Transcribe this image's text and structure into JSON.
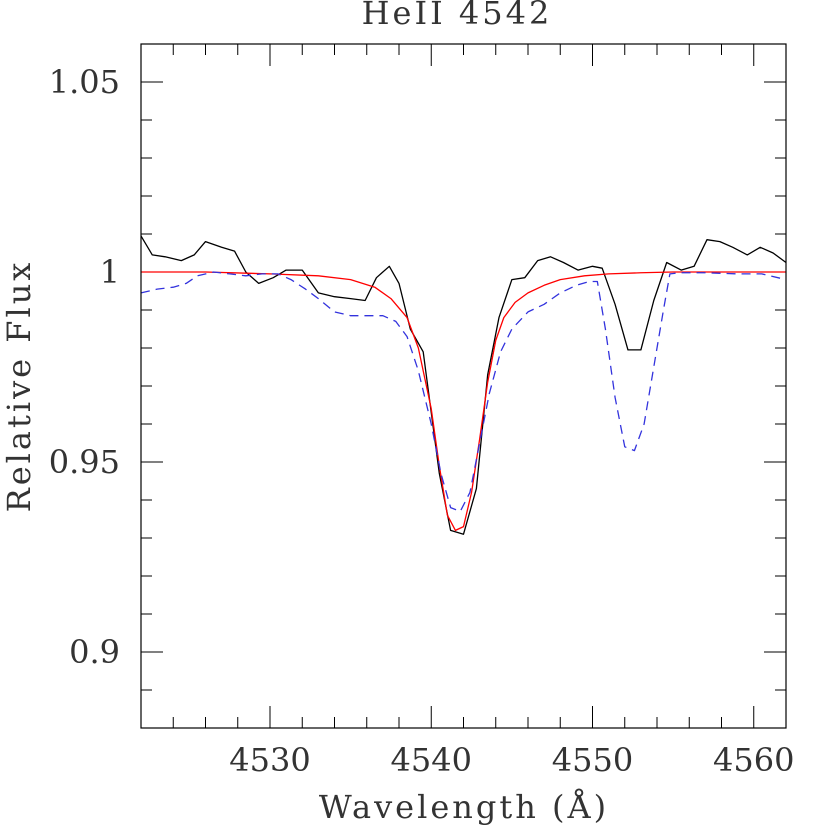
{
  "chart_data": {
    "type": "line",
    "title": "HeII 4542",
    "xlabel": "Wavelength (Å)",
    "ylabel": "Relative Flux",
    "xlim": [
      4522,
      4562
    ],
    "ylim": [
      0.88,
      1.06
    ],
    "x_ticks": [
      "4530",
      "4540",
      "4550",
      "4560"
    ],
    "x_tick_values": [
      4530,
      4540,
      4550,
      4560
    ],
    "y_ticks": [
      "0.9",
      "0.95",
      "1",
      "1.05"
    ],
    "y_tick_values": [
      0.9,
      0.95,
      1.0,
      1.05
    ],
    "grid": false,
    "series": [
      {
        "color": "#000000",
        "dash": "solid",
        "x": [
          4522,
          4522.7,
          4523.5,
          4524.5,
          4525.3,
          4526,
          4527,
          4527.8,
          4528.5,
          4529.3,
          4530.2,
          4531,
          4532,
          4533,
          4534,
          4535,
          4535.9,
          4536.6,
          4537.4,
          4538,
          4538.7,
          4539.5,
          4540,
          4540.5,
          4541.2,
          4542,
          4542.8,
          4543.5,
          4544.2,
          4545,
          4545.8,
          4546.6,
          4547.4,
          4548.2,
          4549.1,
          4550,
          4550.6,
          4551.4,
          4552.2,
          4553,
          4553.8,
          4554.6,
          4555.5,
          4556.3,
          4557.1,
          4557.9,
          4558.7,
          4559.6,
          4560.4,
          4561.2,
          4562
        ],
        "values": [
          1.0095,
          1.0045,
          1.004,
          1.003,
          1.0045,
          1.008,
          1.0065,
          1.0055,
          1.0,
          0.997,
          0.9985,
          1.0005,
          1.0005,
          0.9945,
          0.9935,
          0.993,
          0.9925,
          0.9985,
          1.0015,
          0.997,
          0.985,
          0.979,
          0.963,
          0.947,
          0.932,
          0.931,
          0.943,
          0.973,
          0.988,
          0.998,
          0.9985,
          1.003,
          1.004,
          1.0025,
          1.0005,
          1.0015,
          1.001,
          0.9915,
          0.9795,
          0.9795,
          0.9925,
          1.0025,
          1.0005,
          1.0015,
          1.0085,
          1.008,
          1.0065,
          1.0045,
          1.0065,
          1.005,
          1.0025
        ]
      },
      {
        "color": "#ff0000",
        "dash": "solid",
        "x": [
          4522,
          4526,
          4530,
          4533,
          4535,
          4536.5,
          4537.5,
          4538.5,
          4539.2,
          4540,
          4540.5,
          4541,
          4541.5,
          4542,
          4542.5,
          4543,
          4543.5,
          4544,
          4544.5,
          4545.2,
          4546,
          4547,
          4548,
          4549.5,
          4551,
          4553,
          4555,
          4558,
          4562
        ],
        "values": [
          1.0,
          1.0,
          0.9995,
          0.999,
          0.998,
          0.996,
          0.993,
          0.988,
          0.98,
          0.964,
          0.949,
          0.936,
          0.932,
          0.933,
          0.942,
          0.956,
          0.971,
          0.982,
          0.988,
          0.992,
          0.9945,
          0.9965,
          0.998,
          0.999,
          0.9995,
          0.9998,
          1.0,
          1.0,
          1.0
        ]
      },
      {
        "color": "#3333dd",
        "dash": "dashed",
        "x": [
          4522,
          4523,
          4524,
          4524.8,
          4525.5,
          4526.5,
          4527.5,
          4528.5,
          4529.5,
          4530.5,
          4531.3,
          4532.2,
          4533,
          4534,
          4535,
          4536,
          4537,
          4537.8,
          4538.5,
          4539.2,
          4540,
          4540.6,
          4541.2,
          4541.8,
          4542.4,
          4543,
          4543.6,
          4544.3,
          4545,
          4546,
          4547,
          4548,
          4549,
          4549.8,
          4550.3,
          4550.8,
          4551.4,
          4552,
          4552.6,
          4553.2,
          4553.8,
          4554.4,
          4554.8,
          4555.4,
          4557,
          4559,
          4560.5,
          4562
        ],
        "values": [
          0.9945,
          0.9955,
          0.996,
          0.997,
          0.999,
          1.0,
          0.9995,
          0.999,
          0.9995,
          0.9995,
          0.998,
          0.9955,
          0.993,
          0.9895,
          0.9885,
          0.9885,
          0.9885,
          0.987,
          0.983,
          0.974,
          0.96,
          0.947,
          0.938,
          0.937,
          0.942,
          0.955,
          0.968,
          0.979,
          0.985,
          0.9895,
          0.9915,
          0.9945,
          0.9965,
          0.9975,
          0.9975,
          0.985,
          0.967,
          0.954,
          0.953,
          0.96,
          0.975,
          0.99,
          0.9995,
          0.9998,
          0.9998,
          0.9995,
          0.9995,
          0.998
        ]
      }
    ]
  }
}
